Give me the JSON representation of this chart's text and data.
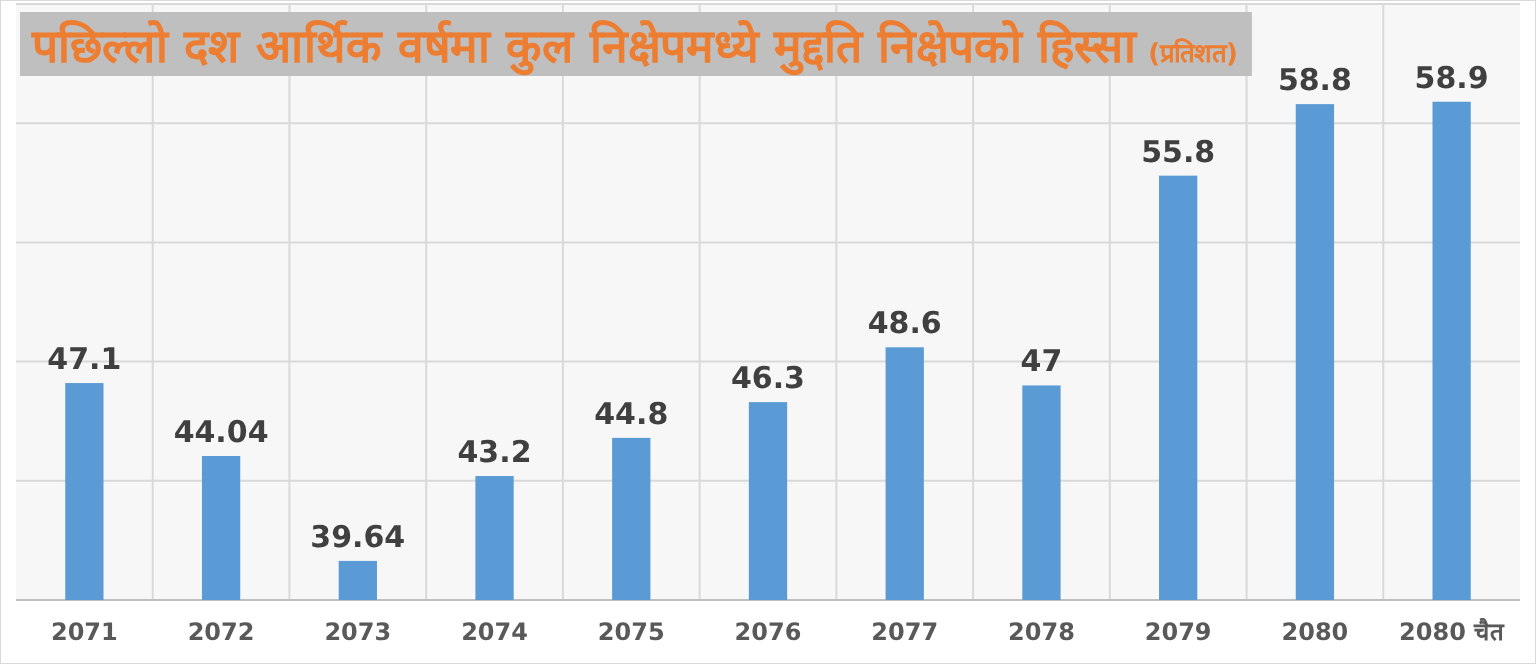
{
  "chart_data": {
    "type": "bar",
    "title": "पछिल्लो दश आर्थिक वर्षमा कुल निक्षेपमध्ये मुद्दति निक्षेपको हिस्सा",
    "subtitle": "(प्रतिशत)",
    "categories": [
      "2071",
      "2072",
      "2073",
      "2074",
      "2075",
      "2076",
      "2077",
      "2078",
      "2079",
      "2080",
      "2080 चैत"
    ],
    "values": [
      47.1,
      44.04,
      39.64,
      43.2,
      44.8,
      46.3,
      48.6,
      47,
      55.8,
      58.8,
      58.9
    ],
    "color": "#5b9bd5",
    "data_labels": true,
    "grid": true,
    "tick_labels": "x",
    "ylim": [
      38,
      63
    ],
    "yticks": [
      {
        "value": 38,
        "label": null
      },
      {
        "value": 43,
        "label": null
      },
      {
        "value": 48,
        "label": null
      },
      {
        "value": 53,
        "label": null
      },
      {
        "value": 58,
        "label": null
      },
      {
        "value": 63,
        "label": null
      }
    ]
  }
}
